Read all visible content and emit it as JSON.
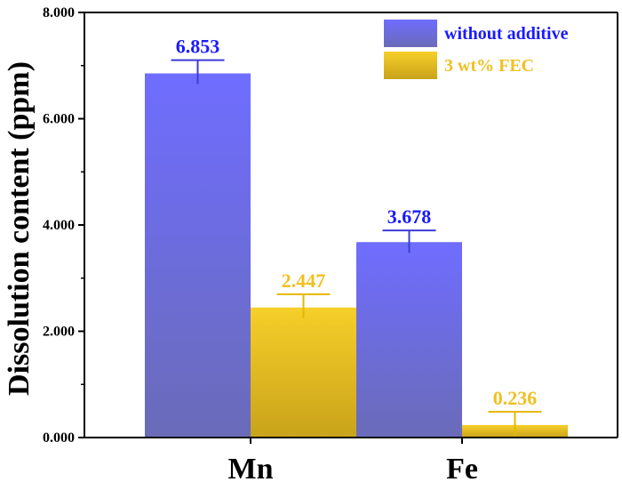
{
  "chart_data": {
    "type": "bar",
    "title": "",
    "xlabel": "",
    "ylabel": "Dissolution content (ppm)",
    "categories": [
      "Mn",
      "Fe"
    ],
    "ylim": [
      0,
      8
    ],
    "yticks": [
      0,
      2,
      4,
      6,
      8
    ],
    "ytick_labels": [
      "0.000",
      "2.000",
      "4.000",
      "6.000",
      "8.000"
    ],
    "series": [
      {
        "name": "without additive",
        "values": [
          6.853,
          3.678
        ],
        "errors": [
          0.25,
          0.22
        ],
        "value_labels": [
          "6.853",
          "3.678"
        ],
        "color_top": "#6f6dff",
        "color_bottom": "#6a6bb8",
        "label_color": "#1a1aff"
      },
      {
        "name": "3 wt% FEC",
        "values": [
          2.447,
          0.236
        ],
        "errors": [
          0.25,
          0.25
        ],
        "value_labels": [
          "2.447",
          "0.236"
        ],
        "color_top": "#f6cf2a",
        "color_bottom": "#c9a31a",
        "label_color": "#f0c020"
      }
    ],
    "legend_position": "top-right",
    "grid": false
  }
}
